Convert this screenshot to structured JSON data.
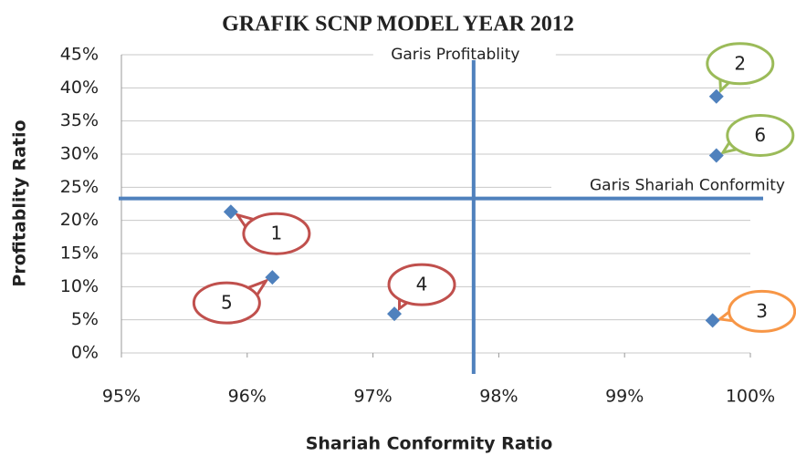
{
  "chart_data": {
    "type": "scatter",
    "title": "GRAFIK SCNP MODEL YEAR 2012",
    "x_label": "Shariah Conformity Ratio",
    "y_label": "Profitablity Ratio",
    "x": [
      95.87,
      99.73,
      99.7,
      97.17,
      96.2,
      99.73
    ],
    "values": [
      21.3,
      38.7,
      4.9,
      5.9,
      11.4,
      29.8
    ],
    "point_labels": [
      "1",
      "2",
      "3",
      "4",
      "5",
      "6"
    ],
    "color": "#4f81bd",
    "callout_colors": [
      "#c0504d",
      "#9bbb59",
      "#f79646",
      "#c0504d",
      "#c0504d",
      "#9bbb59"
    ],
    "xlim": [
      95,
      100
    ],
    "xticks": [
      {
        "value": 95,
        "label": "95%"
      },
      {
        "value": 96,
        "label": "96%"
      },
      {
        "value": 97,
        "label": "97%"
      },
      {
        "value": 98,
        "label": "98%"
      },
      {
        "value": 99,
        "label": "99%"
      },
      {
        "value": 100,
        "label": "100%"
      }
    ],
    "ylim": [
      0,
      45
    ],
    "yticks": [
      {
        "value": 0,
        "label": "0%"
      },
      {
        "value": 5,
        "label": "5%"
      },
      {
        "value": 10,
        "label": "10%"
      },
      {
        "value": 15,
        "label": "15%"
      },
      {
        "value": 20,
        "label": "20%"
      },
      {
        "value": 25,
        "label": "25%"
      },
      {
        "value": 30,
        "label": "30%"
      },
      {
        "value": 35,
        "label": "35%"
      },
      {
        "value": 40,
        "label": "40%"
      },
      {
        "value": 45,
        "label": "45%"
      }
    ],
    "grid": true,
    "reference_lines": [
      {
        "axis": "x",
        "value": 97.8,
        "label": "Garis Profitablity"
      },
      {
        "axis": "y",
        "value": 23.3,
        "label": "Garis Shariah Conformity"
      }
    ]
  }
}
